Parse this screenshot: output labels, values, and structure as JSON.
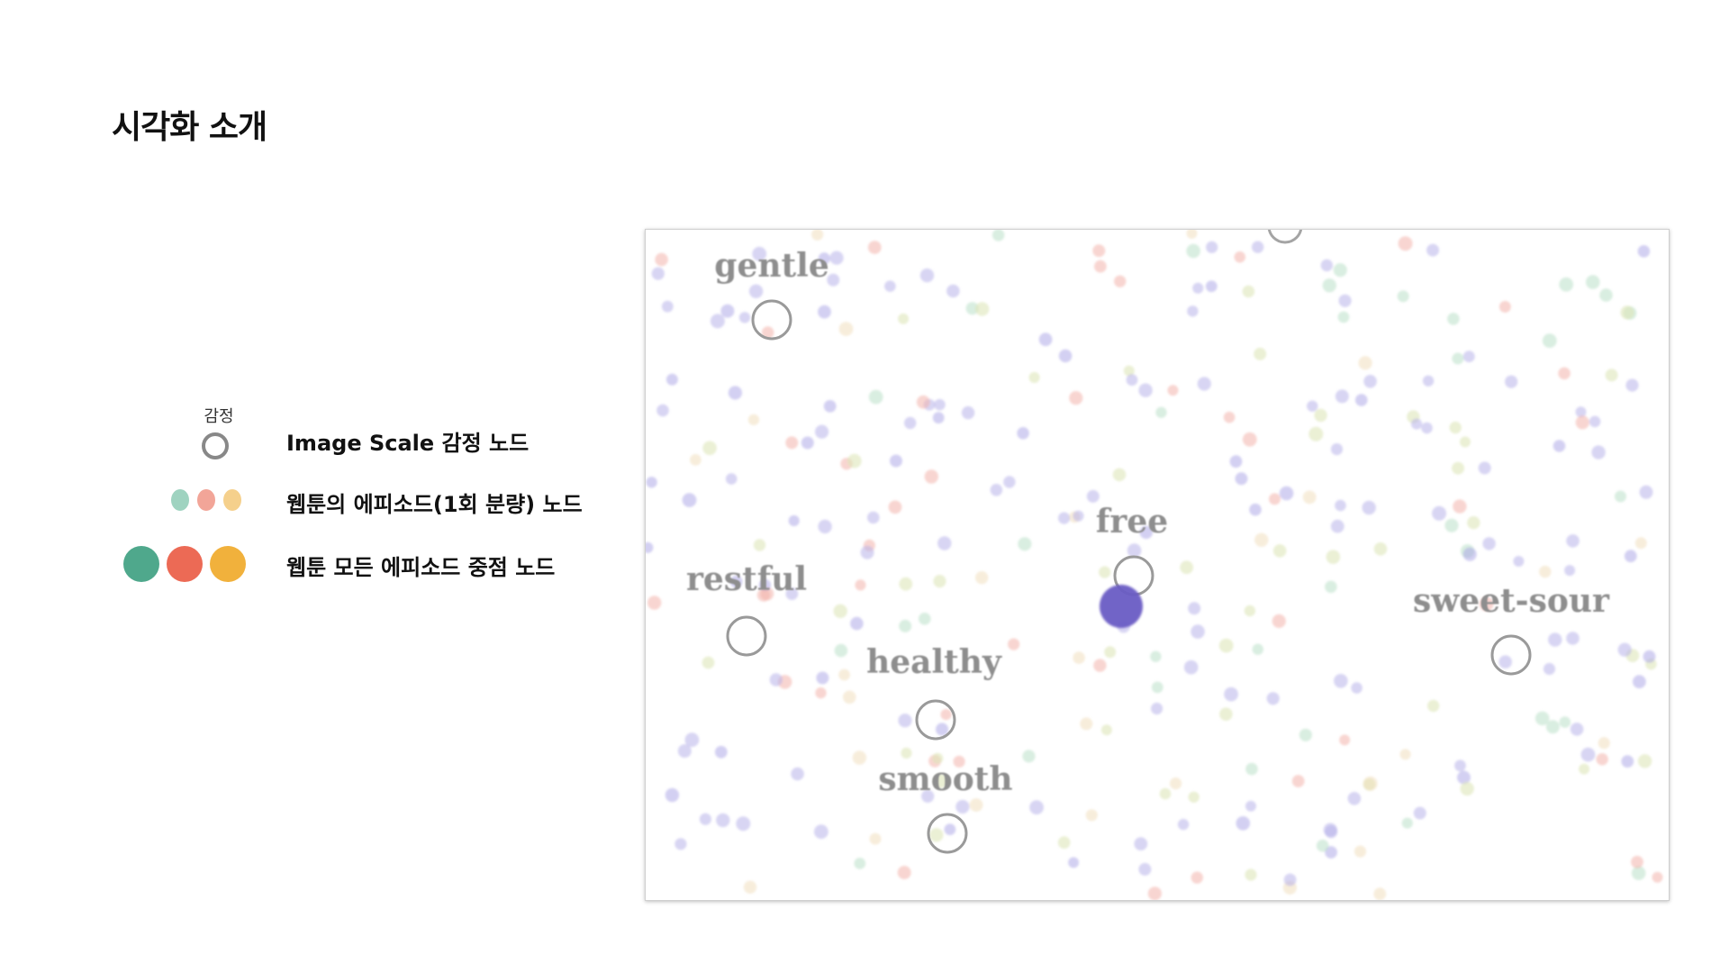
{
  "title": "시각화 소개",
  "legend": {
    "emotion_caption": "감정",
    "emotion_label": "Image Scale 감정 노드",
    "episode_label": "웹툰의 에피소드(1회 분량) 노드",
    "center_label": "웹툰 모든 에피소드 중점 노드"
  },
  "colors": {
    "green": "#4fa88c",
    "red": "#ec6a55",
    "yellow": "#f1b13c",
    "green_light": "#9fd3c0",
    "red_light": "#f2a598",
    "yellow_light": "#f5d08c",
    "purple": "#6a5bc4",
    "emotion_ring": "#888888"
  },
  "emotions": [
    {
      "name": "gentle"
    },
    {
      "name": "free"
    },
    {
      "name": "restful"
    },
    {
      "name": "sweet-sour"
    },
    {
      "name": "healthy"
    },
    {
      "name": "smooth"
    }
  ]
}
